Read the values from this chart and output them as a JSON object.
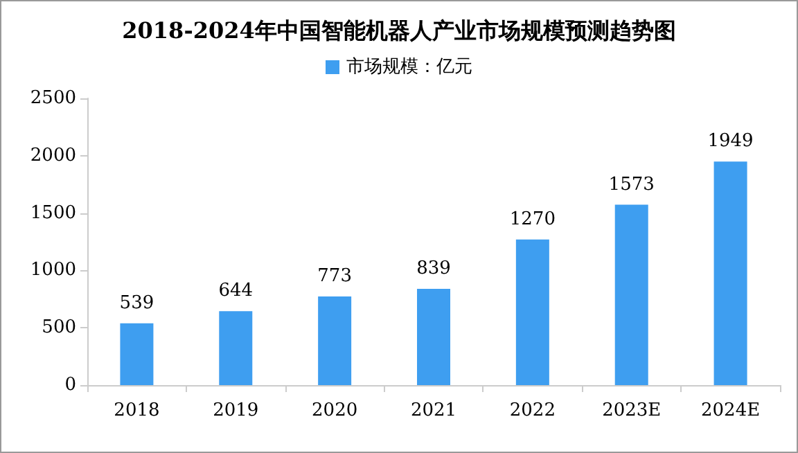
{
  "chart_data": {
    "type": "bar",
    "title": "2018-2024年中国智能机器人产业市场规模预测趋势图",
    "categories": [
      "2018",
      "2019",
      "2020",
      "2021",
      "2022",
      "2023E",
      "2024E"
    ],
    "series": [
      {
        "name": "市场规模：亿元",
        "color": "#3e9ef0",
        "values": [
          539,
          644,
          773,
          839,
          1270,
          1573,
          1949
        ]
      }
    ],
    "ylim": [
      0,
      2500
    ],
    "yticks": [
      0,
      500,
      1000,
      1500,
      2000,
      2500
    ],
    "grid": false,
    "legend": "top",
    "data_labels": true
  }
}
